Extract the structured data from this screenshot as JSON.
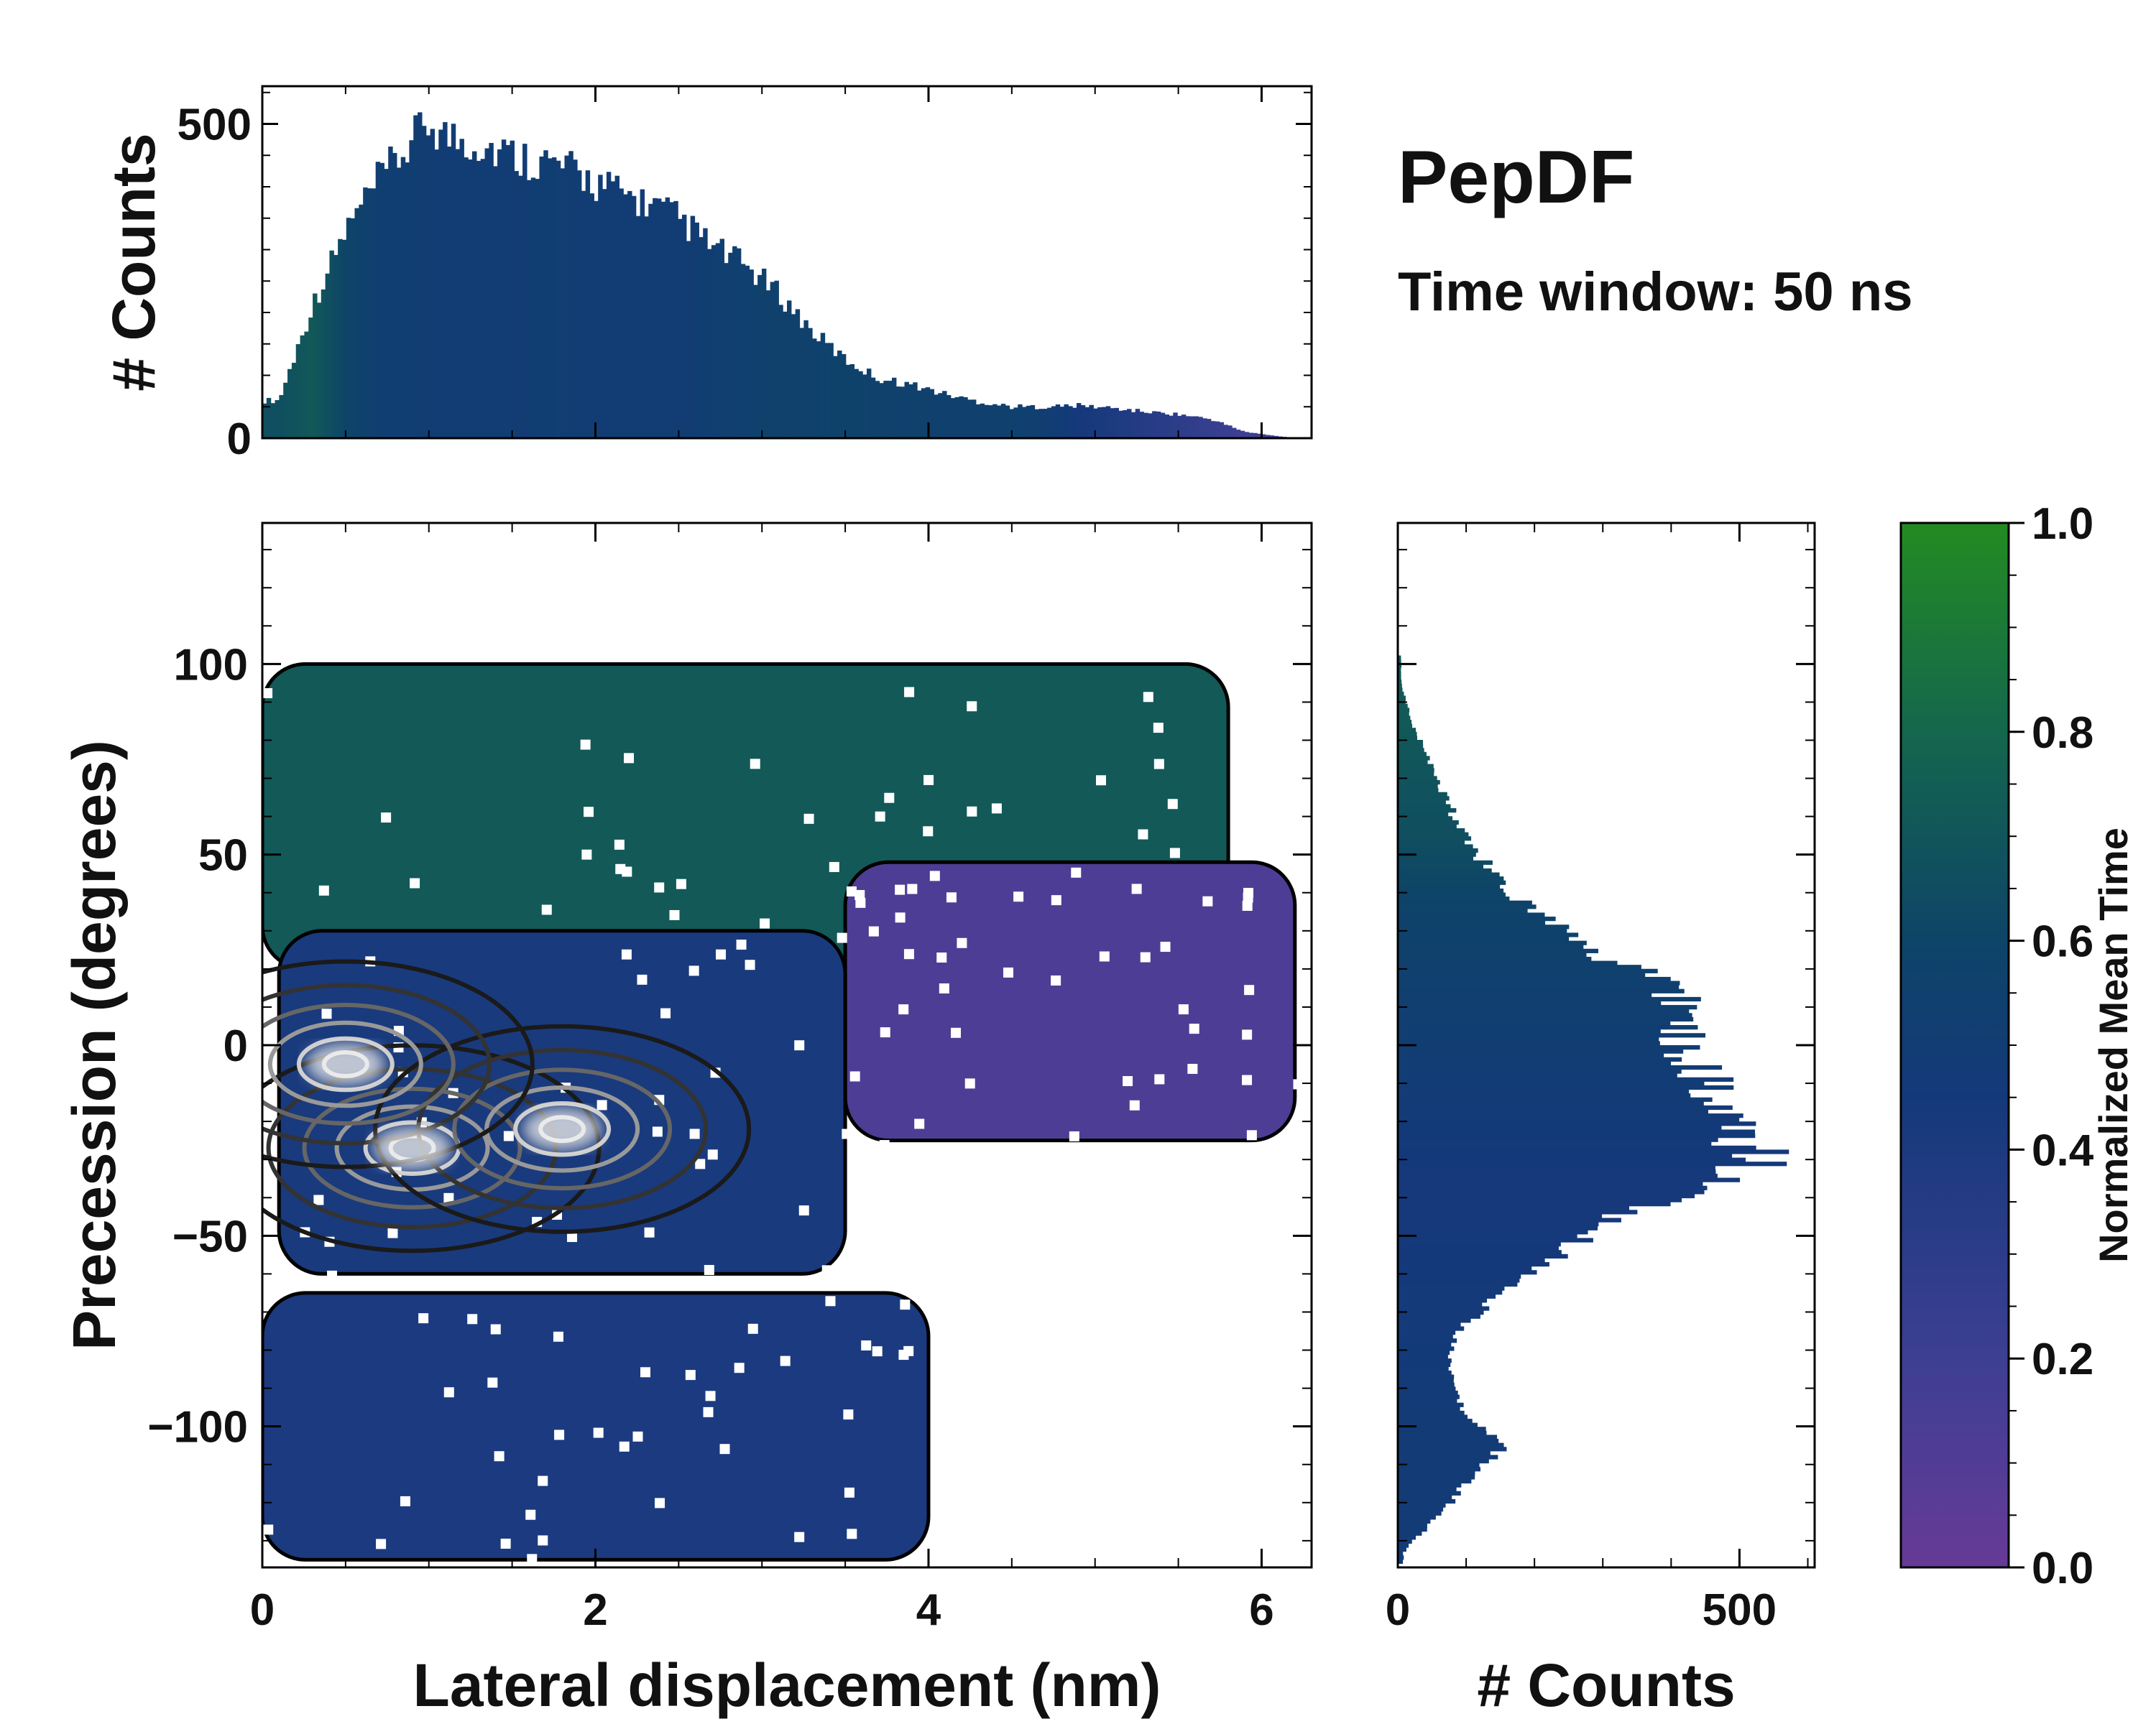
{
  "annotation": {
    "title": "PepDF",
    "subtitle": "Time window: 50 ns"
  },
  "colors": {
    "low": "#673a97",
    "mid": "#0b3c6e",
    "high": "#238b21"
  },
  "chart_data": [
    {
      "id": "top_histogram",
      "type": "bar",
      "title": "",
      "xlabel": "",
      "ylabel": "# Counts",
      "xlim": [
        0,
        6.3
      ],
      "ylim": [
        0,
        560
      ],
      "yticks": [
        0,
        500
      ],
      "color_by": "normalized mean time",
      "x_centers": [
        0.1,
        0.3,
        0.5,
        0.7,
        0.9,
        1.0,
        1.1,
        1.3,
        1.5,
        1.7,
        1.9,
        2.1,
        2.3,
        2.5,
        2.7,
        2.9,
        3.1,
        3.3,
        3.5,
        3.7,
        3.9,
        4.1,
        4.3,
        4.5,
        4.7,
        4.9,
        5.1,
        5.3,
        5.5,
        5.7,
        5.9,
        6.1,
        6.2
      ],
      "values": [
        60,
        210,
        330,
        410,
        470,
        505,
        480,
        470,
        450,
        440,
        420,
        395,
        375,
        350,
        305,
        275,
        230,
        170,
        125,
        95,
        85,
        70,
        58,
        50,
        50,
        52,
        48,
        42,
        38,
        30,
        10,
        3,
        1
      ],
      "mean_time": [
        0.66,
        0.72,
        0.6,
        0.52,
        0.52,
        0.5,
        0.5,
        0.5,
        0.5,
        0.52,
        0.5,
        0.5,
        0.5,
        0.5,
        0.52,
        0.55,
        0.56,
        0.56,
        0.58,
        0.56,
        0.56,
        0.55,
        0.55,
        0.55,
        0.52,
        0.44,
        0.4,
        0.34,
        0.3,
        0.24,
        0.2,
        0.18,
        0.18
      ]
    },
    {
      "id": "joint_heatmap",
      "type": "heatmap",
      "title": "",
      "xlabel": "Lateral displacement (nm)",
      "ylabel": "Precession (degrees)",
      "xlim": [
        0,
        6.3
      ],
      "ylim": [
        -137,
        137
      ],
      "xticks": [
        0,
        2,
        4,
        6
      ],
      "yticks": [
        100,
        50,
        0,
        -50,
        -100
      ],
      "ytick_labels": [
        "100",
        "50",
        "0",
        "−50",
        "−100"
      ],
      "color_by": "normalized mean time",
      "regions": [
        {
          "name": "upper band",
          "x_range": [
            0,
            5.8
          ],
          "y_range": [
            20,
            100
          ],
          "mean_time": 0.72
        },
        {
          "name": "right lobe",
          "x_range": [
            3.5,
            6.2
          ],
          "y_range": [
            -25,
            48
          ],
          "mean_time": 0.12
        },
        {
          "name": "core",
          "x_range": [
            0.1,
            3.5
          ],
          "y_range": [
            -60,
            30
          ],
          "mean_time": 0.42
        },
        {
          "name": "lower band",
          "x_range": [
            0,
            4.0
          ],
          "y_range": [
            -135,
            -65
          ],
          "mean_time": 0.4
        }
      ],
      "density_peaks": [
        {
          "x": 0.9,
          "y": -27
        },
        {
          "x": 1.8,
          "y": -22
        },
        {
          "x": 0.5,
          "y": -5
        }
      ]
    },
    {
      "id": "right_histogram",
      "type": "bar",
      "orientation": "horizontal",
      "xlabel": "# Counts",
      "ylabel": "",
      "xlim": [
        0,
        610
      ],
      "ylim": [
        -137,
        137
      ],
      "xticks": [
        0,
        500
      ],
      "color_by": "normalized mean time",
      "y_centers": [
        95,
        85,
        75,
        65,
        55,
        45,
        35,
        25,
        15,
        5,
        -5,
        -15,
        -25,
        -30,
        -35,
        -45,
        -55,
        -65,
        -75,
        -85,
        -95,
        -105,
        -115,
        -125,
        -133
      ],
      "values": [
        5,
        20,
        45,
        70,
        95,
        140,
        200,
        280,
        410,
        400,
        440,
        460,
        500,
        540,
        460,
        320,
        230,
        150,
        85,
        80,
        95,
        150,
        100,
        50,
        8
      ],
      "mean_time": [
        0.72,
        0.72,
        0.7,
        0.68,
        0.66,
        0.62,
        0.58,
        0.56,
        0.54,
        0.52,
        0.5,
        0.48,
        0.46,
        0.45,
        0.44,
        0.44,
        0.45,
        0.46,
        0.46,
        0.47,
        0.48,
        0.48,
        0.48,
        0.48,
        0.48
      ]
    },
    {
      "id": "colorbar",
      "type": "colorbar",
      "label": "Normalized Mean Time",
      "range": [
        0,
        1
      ],
      "ticks": [
        "0.0",
        "0.2",
        "0.4",
        "0.6",
        "0.8",
        "1.0"
      ]
    }
  ]
}
